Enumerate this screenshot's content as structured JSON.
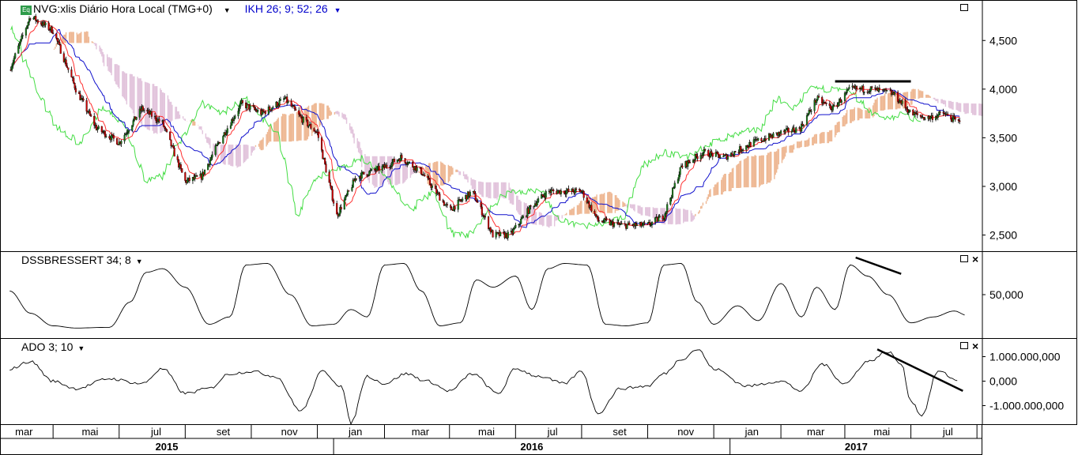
{
  "price_panel": {
    "symbol_label": "NVG:xlis Diário Hora Local (TMG+0)",
    "indicator_label": "IKH 26; 9; 52; 26",
    "eq_icon": "Eq",
    "y_ticks": [
      "4,500",
      "4,000",
      "3,500",
      "3,000",
      "2,500"
    ]
  },
  "dss_panel": {
    "label": "DSSBRESSERT 34; 8",
    "y_ticks": [
      "50,000"
    ]
  },
  "ado_panel": {
    "label": "ADO 3; 10",
    "y_ticks": [
      "1.000.000,000",
      "0,000",
      "-1.000.000,000"
    ]
  },
  "x_axis": {
    "months": [
      "mar",
      "mai",
      "jul",
      "set",
      "nov",
      "jan",
      "mar",
      "mai",
      "jul",
      "set",
      "nov",
      "jan",
      "mar",
      "mai",
      "jul"
    ],
    "years": [
      "2015",
      "2016",
      "2017"
    ]
  },
  "colors": {
    "up_candle": "#1a7a1a",
    "down_candle": "#cc0000",
    "tenkan": "#ff3030",
    "kijun": "#1010cc",
    "chikou": "#44dd44",
    "cloud_bull": "#e8a070",
    "cloud_bear": "#d8b0d0",
    "indicator_line": "#000000",
    "indicator_label_color": "#0000cc"
  },
  "chart_data": [
    {
      "type": "candlestick",
      "title": "NVG:xlis Diário Hora Local (TMG+0)",
      "indicator": "IKH 26; 9; 52; 26",
      "ylim": [
        2350,
        4900
      ],
      "y_ticks": [
        4500,
        4000,
        3500,
        3000,
        2500
      ],
      "x_range": [
        "2015-03",
        "2017-08"
      ],
      "close_path": [
        [
          "2015-03-01",
          4200
        ],
        [
          "2015-03-20",
          4750
        ],
        [
          "2015-04-10",
          4600
        ],
        [
          "2015-05-01",
          4000
        ],
        [
          "2015-05-20",
          3600
        ],
        [
          "2015-06-10",
          3450
        ],
        [
          "2015-07-01",
          3800
        ],
        [
          "2015-07-20",
          3650
        ],
        [
          "2015-08-10",
          3050
        ],
        [
          "2015-08-25",
          3100
        ],
        [
          "2015-09-10",
          3450
        ],
        [
          "2015-10-01",
          3850
        ],
        [
          "2015-10-20",
          3750
        ],
        [
          "2015-11-10",
          3900
        ],
        [
          "2015-11-25",
          3700
        ],
        [
          "2015-12-10",
          3550
        ],
        [
          "2015-12-28",
          2700
        ],
        [
          "2016-01-15",
          3100
        ],
        [
          "2016-02-10",
          3200
        ],
        [
          "2016-02-25",
          3300
        ],
        [
          "2016-03-15",
          3150
        ],
        [
          "2016-04-10",
          2750
        ],
        [
          "2016-05-01",
          2950
        ],
        [
          "2016-05-20",
          2500
        ],
        [
          "2016-06-05",
          2500
        ],
        [
          "2016-06-25",
          2800
        ],
        [
          "2016-07-10",
          2950
        ],
        [
          "2016-07-25",
          2950
        ],
        [
          "2016-08-10",
          2950
        ],
        [
          "2016-08-25",
          2650
        ],
        [
          "2016-09-15",
          2600
        ],
        [
          "2016-10-10",
          2600
        ],
        [
          "2016-10-25",
          2700
        ],
        [
          "2016-11-10",
          3200
        ],
        [
          "2016-11-30",
          3350
        ],
        [
          "2016-12-20",
          3300
        ],
        [
          "2017-01-15",
          3450
        ],
        [
          "2017-02-10",
          3550
        ],
        [
          "2017-02-28",
          3600
        ],
        [
          "2017-03-15",
          3900
        ],
        [
          "2017-03-30",
          3800
        ],
        [
          "2017-04-15",
          4000
        ],
        [
          "2017-05-05",
          4000
        ],
        [
          "2017-05-25",
          3950
        ],
        [
          "2017-06-10",
          3750
        ],
        [
          "2017-06-25",
          3700
        ],
        [
          "2017-07-10",
          3750
        ],
        [
          "2017-07-25",
          3650
        ]
      ],
      "annotations": [
        {
          "type": "horizontal_line",
          "from": "2017-04-01",
          "to": "2017-06-10",
          "y": 4080
        }
      ]
    },
    {
      "type": "line",
      "title": "DSSBRESSERT 34; 8",
      "ylim": [
        0,
        100
      ],
      "y_ticks": [
        50
      ],
      "x": [
        "2015-03-01",
        "2015-03-20",
        "2015-04-10",
        "2015-05-01",
        "2015-06-01",
        "2015-06-20",
        "2015-07-05",
        "2015-07-20",
        "2015-08-10",
        "2015-09-01",
        "2015-09-20",
        "2015-10-05",
        "2015-10-25",
        "2015-11-15",
        "2015-12-05",
        "2015-12-25",
        "2016-01-10",
        "2016-01-25",
        "2016-02-10",
        "2016-02-28",
        "2016-03-15",
        "2016-04-01",
        "2016-04-20",
        "2016-05-05",
        "2016-05-20",
        "2016-06-10",
        "2016-06-25",
        "2016-07-10",
        "2016-07-25",
        "2016-08-15",
        "2016-09-01",
        "2016-09-20",
        "2016-10-10",
        "2016-10-25",
        "2016-11-10",
        "2016-11-25",
        "2016-12-10",
        "2017-01-01",
        "2017-01-20",
        "2017-02-10",
        "2017-03-01",
        "2017-03-15",
        "2017-04-01",
        "2017-04-15",
        "2017-05-01",
        "2017-05-20",
        "2017-06-10",
        "2017-07-01",
        "2017-07-20",
        "2017-08-01"
      ],
      "values": [
        55,
        25,
        8,
        5,
        6,
        40,
        80,
        85,
        60,
        10,
        20,
        90,
        92,
        50,
        8,
        10,
        30,
        20,
        90,
        92,
        55,
        8,
        12,
        70,
        60,
        75,
        30,
        85,
        92,
        90,
        10,
        8,
        12,
        90,
        92,
        40,
        10,
        35,
        15,
        65,
        20,
        60,
        30,
        90,
        75,
        50,
        12,
        20,
        28,
        22
      ],
      "annotations": [
        {
          "type": "trend_line",
          "from": [
            "2017-04-20",
            100
          ],
          "to": [
            "2017-06-01",
            78
          ]
        }
      ]
    },
    {
      "type": "line",
      "title": "ADO 3; 10",
      "ylim": [
        -1500000000,
        1500000000
      ],
      "y_ticks": [
        1000000000,
        0,
        -1000000000
      ],
      "x": [
        "2015-03-01",
        "2015-03-20",
        "2015-04-10",
        "2015-05-01",
        "2015-06-01",
        "2015-07-01",
        "2015-07-20",
        "2015-08-10",
        "2015-09-01",
        "2015-09-20",
        "2015-10-10",
        "2015-11-01",
        "2015-11-25",
        "2015-12-15",
        "2016-01-01",
        "2016-01-10",
        "2016-01-25",
        "2016-02-10",
        "2016-03-01",
        "2016-03-20",
        "2016-04-10",
        "2016-05-01",
        "2016-05-25",
        "2016-06-10",
        "2016-07-01",
        "2016-07-25",
        "2016-08-10",
        "2016-08-25",
        "2016-09-15",
        "2016-10-10",
        "2016-10-25",
        "2016-11-10",
        "2016-11-25",
        "2016-12-10",
        "2017-01-10",
        "2017-02-10",
        "2017-03-01",
        "2017-03-20",
        "2017-04-10",
        "2017-05-01",
        "2017-05-20",
        "2017-06-01",
        "2017-06-10",
        "2017-06-20",
        "2017-07-05",
        "2017-07-25"
      ],
      "values": [
        500000000,
        800000000,
        0,
        -300000000,
        100000000,
        -100000000,
        500000000,
        -500000000,
        -300000000,
        300000000,
        400000000,
        200000000,
        -1200000000,
        400000000,
        -200000000,
        -1700000000,
        200000000,
        -100000000,
        300000000,
        0,
        -400000000,
        300000000,
        -500000000,
        500000000,
        200000000,
        -100000000,
        400000000,
        -1300000000,
        -300000000,
        -200000000,
        300000000,
        900000000,
        1300000000,
        500000000,
        -200000000,
        0,
        -400000000,
        700000000,
        -100000000,
        800000000,
        1200000000,
        700000000,
        -800000000,
        -1400000000,
        400000000,
        0
      ],
      "annotations": [
        {
          "type": "trend_line",
          "from": [
            "2017-05-10",
            1300000000
          ],
          "to": [
            "2017-07-28",
            -400000000
          ]
        }
      ]
    }
  ]
}
